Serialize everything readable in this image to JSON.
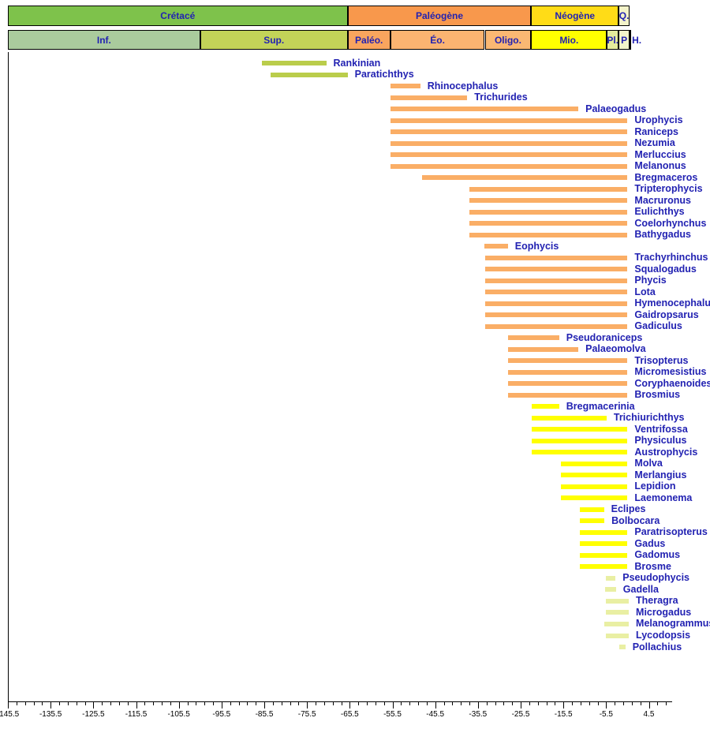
{
  "colors": {
    "label_text": "#2222B2",
    "axis": "#000000",
    "bar_groups": {
      "cretaceous": "#BACD4B",
      "paleogene": "#FAAE66",
      "neogene": "#FFFF00",
      "plio_quaternary": "#E9EFA3"
    }
  },
  "timescale": {
    "periods": [
      {
        "label": "Crétacé",
        "from": -145.5,
        "to": -66,
        "color": "#7EC24B"
      },
      {
        "label": "Paléogène",
        "from": -66,
        "to": -23.03,
        "color": "#F8984C"
      },
      {
        "label": "Néogène",
        "from": -23.03,
        "to": -2.58,
        "color": "#FFDC17"
      },
      {
        "label": "Q.",
        "from": -2.58,
        "to": 0,
        "color": "#F3F3C9"
      }
    ],
    "epochs": [
      {
        "label": "Inf.",
        "from": -145.5,
        "to": -100.5,
        "color": "#AACB9D"
      },
      {
        "label": "Sup.",
        "from": -100.5,
        "to": -66,
        "color": "#C3D358"
      },
      {
        "label": "Paléo.",
        "from": -66,
        "to": -56,
        "color": "#F9A55E"
      },
      {
        "label": "Éo.",
        "from": -56,
        "to": -33.9,
        "color": "#FBB471"
      },
      {
        "label": "Oligo.",
        "from": -33.9,
        "to": -23.03,
        "color": "#FAB873"
      },
      {
        "label": "Mio.",
        "from": -23.03,
        "to": -5.33,
        "color": "#FFFF00"
      },
      {
        "label": "Pl.",
        "from": -5.33,
        "to": -2.58,
        "color": "#E4EB9C"
      },
      {
        "label": "P",
        "from": -2.58,
        "to": -0.01,
        "color": "#F2F4CB"
      },
      {
        "label": "H.",
        "from": -0.01,
        "to": 0,
        "color": "#FFFFFF",
        "overflow": true
      }
    ]
  },
  "chart_data": {
    "type": "bar",
    "variant": "horizontal-range-chart",
    "title": "",
    "xlabel": "",
    "ylabel": "",
    "x_axis": {
      "unit": "Ma",
      "min": -145.5,
      "max": 10.5,
      "major_tick_step": 10,
      "minor_tick_step": 2,
      "major_tick_labels": [
        "-145.5",
        "-135.5",
        "-125.5",
        "-115.5",
        "-105.5",
        "-95.5",
        "-85.5",
        "-75.5",
        "-65.5",
        "-55.5",
        "-45.5",
        "-35.5",
        "-25.5",
        "-15.5",
        "-5.5",
        "4.5"
      ]
    },
    "bars": [
      {
        "name": "Rankinian",
        "start": -86,
        "end": -71,
        "group": "cretaceous"
      },
      {
        "name": "Paratichthys",
        "start": -84,
        "end": -66,
        "group": "cretaceous"
      },
      {
        "name": "Rhinocephalus",
        "start": -56,
        "end": -49,
        "group": "paleogene"
      },
      {
        "name": "Trichurides",
        "start": -56,
        "end": -38,
        "group": "paleogene"
      },
      {
        "name": "Palaeogadus",
        "start": -56,
        "end": -12,
        "group": "paleogene"
      },
      {
        "name": "Urophycis",
        "start": -56,
        "end": -0.5,
        "group": "paleogene"
      },
      {
        "name": "Raniceps",
        "start": -56,
        "end": -0.5,
        "group": "paleogene"
      },
      {
        "name": "Nezumia",
        "start": -56,
        "end": -0.5,
        "group": "paleogene"
      },
      {
        "name": "Merluccius",
        "start": -56,
        "end": -0.5,
        "group": "paleogene"
      },
      {
        "name": "Melanonus",
        "start": -56,
        "end": -0.5,
        "group": "paleogene"
      },
      {
        "name": "Bregmaceros",
        "start": -48.5,
        "end": -0.5,
        "group": "paleogene"
      },
      {
        "name": "Tripterophycis",
        "start": -37.5,
        "end": -0.5,
        "group": "paleogene"
      },
      {
        "name": "Macruronus",
        "start": -37.5,
        "end": -0.5,
        "group": "paleogene"
      },
      {
        "name": "Eulichthys",
        "start": -37.5,
        "end": -0.5,
        "group": "paleogene"
      },
      {
        "name": "Coelorhynchus",
        "start": -37.5,
        "end": -0.5,
        "group": "paleogene"
      },
      {
        "name": "Bathygadus",
        "start": -37.5,
        "end": -0.5,
        "group": "paleogene"
      },
      {
        "name": "Eophycis",
        "start": -34,
        "end": -28.5,
        "group": "paleogene"
      },
      {
        "name": "Trachyrhinchus",
        "start": -33.9,
        "end": -0.5,
        "group": "paleogene"
      },
      {
        "name": "Squalogadus",
        "start": -33.9,
        "end": -0.5,
        "group": "paleogene"
      },
      {
        "name": "Phycis",
        "start": -33.9,
        "end": -0.5,
        "group": "paleogene"
      },
      {
        "name": "Lota",
        "start": -33.9,
        "end": -0.5,
        "group": "paleogene"
      },
      {
        "name": "Hymenocephalus",
        "start": -33.9,
        "end": -0.5,
        "group": "paleogene"
      },
      {
        "name": "Gaidropsarus",
        "start": -33.9,
        "end": -0.5,
        "group": "paleogene"
      },
      {
        "name": "Gadiculus",
        "start": -33.9,
        "end": -0.5,
        "group": "paleogene"
      },
      {
        "name": "Pseudoraniceps",
        "start": -28.5,
        "end": -16.5,
        "group": "paleogene"
      },
      {
        "name": "Palaeomolva",
        "start": -28.5,
        "end": -12,
        "group": "paleogene"
      },
      {
        "name": "Trisopterus",
        "start": -28.5,
        "end": -0.5,
        "group": "paleogene"
      },
      {
        "name": "Micromesistius",
        "start": -28.5,
        "end": -0.5,
        "group": "paleogene"
      },
      {
        "name": "Coryphaenoides",
        "start": -28.5,
        "end": -0.5,
        "group": "paleogene"
      },
      {
        "name": "Brosmius",
        "start": -28.5,
        "end": -0.5,
        "group": "paleogene"
      },
      {
        "name": "Bregmacerinia",
        "start": -23,
        "end": -16.5,
        "group": "neogene"
      },
      {
        "name": "Trichiurichthys",
        "start": -23,
        "end": -5.4,
        "group": "neogene"
      },
      {
        "name": "Ventrifossa",
        "start": -23,
        "end": -0.5,
        "group": "neogene"
      },
      {
        "name": "Physiculus",
        "start": -23,
        "end": -0.5,
        "group": "neogene"
      },
      {
        "name": "Austrophycis",
        "start": -23,
        "end": -0.5,
        "group": "neogene"
      },
      {
        "name": "Molva",
        "start": -16,
        "end": -0.5,
        "group": "neogene"
      },
      {
        "name": "Merlangius",
        "start": -16,
        "end": -0.5,
        "group": "neogene"
      },
      {
        "name": "Lepidion",
        "start": -16,
        "end": -0.5,
        "group": "neogene"
      },
      {
        "name": "Laemonema",
        "start": -16,
        "end": -0.5,
        "group": "neogene"
      },
      {
        "name": "Eclipes",
        "start": -11.6,
        "end": -6,
        "group": "neogene"
      },
      {
        "name": "Bolbocara",
        "start": -11.6,
        "end": -5.9,
        "group": "neogene"
      },
      {
        "name": "Paratrisopterus",
        "start": -11.6,
        "end": -0.5,
        "group": "neogene"
      },
      {
        "name": "Gadus",
        "start": -11.6,
        "end": -0.5,
        "group": "neogene"
      },
      {
        "name": "Gadomus",
        "start": -11.6,
        "end": -0.5,
        "group": "neogene"
      },
      {
        "name": "Brosme",
        "start": -11.6,
        "end": -0.5,
        "group": "neogene"
      },
      {
        "name": "Pseudophycis",
        "start": -5.5,
        "end": -3.3,
        "group": "plio_quaternary"
      },
      {
        "name": "Gadella",
        "start": -5.7,
        "end": -3.2,
        "group": "plio_quaternary"
      },
      {
        "name": "Theragra",
        "start": -5.5,
        "end": -0.2,
        "group": "plio_quaternary"
      },
      {
        "name": "Microgadus",
        "start": -5.5,
        "end": -0.2,
        "group": "plio_quaternary"
      },
      {
        "name": "Melanogrammus",
        "start": -6,
        "end": -0.2,
        "group": "plio_quaternary"
      },
      {
        "name": "Lycodopsis",
        "start": -5.5,
        "end": -0.2,
        "group": "plio_quaternary"
      },
      {
        "name": "Pollachius",
        "start": -2.5,
        "end": -1,
        "group": "plio_quaternary"
      }
    ]
  }
}
